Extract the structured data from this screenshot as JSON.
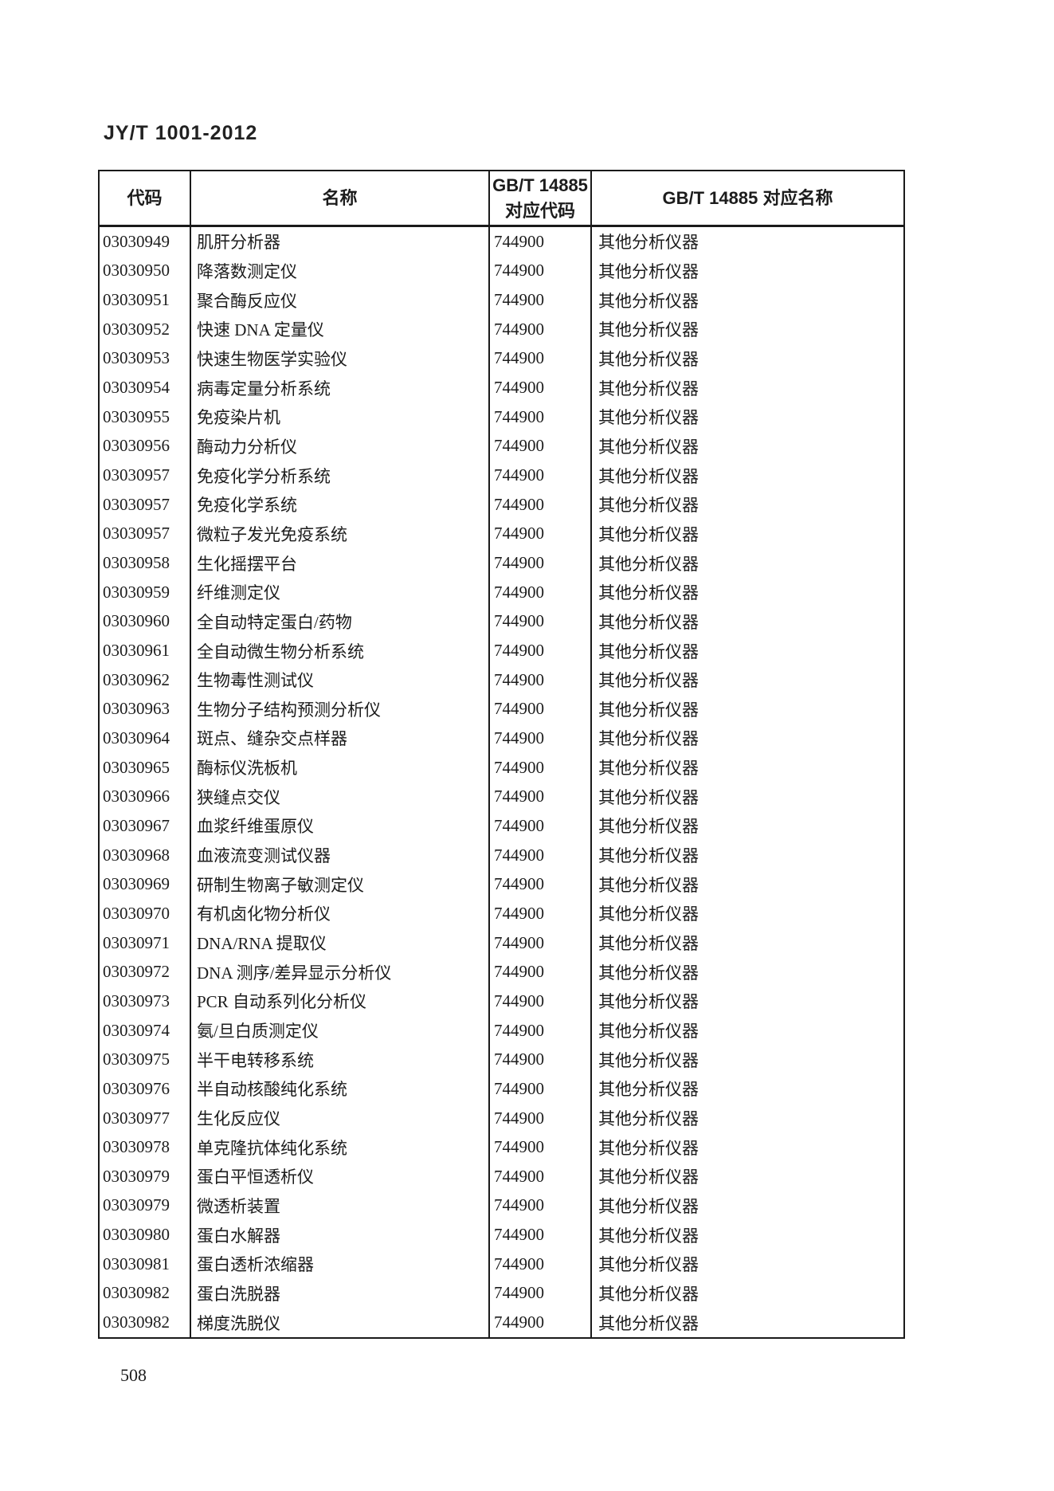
{
  "document": {
    "title": "JY/T 1001-2012",
    "page_number": "508"
  },
  "table": {
    "headers": {
      "code": "代码",
      "name": "名称",
      "gbt_code_line1": "GB/T 14885",
      "gbt_code_line2": "对应代码",
      "gbt_name": "GB/T 14885 对应名称"
    },
    "rows": [
      {
        "code": "03030949",
        "name": "肌肝分析器",
        "gbt_code": "744900",
        "gbt_name": "其他分析仪器"
      },
      {
        "code": "03030950",
        "name": "降落数测定仪",
        "gbt_code": "744900",
        "gbt_name": "其他分析仪器"
      },
      {
        "code": "03030951",
        "name": "聚合酶反应仪",
        "gbt_code": "744900",
        "gbt_name": "其他分析仪器"
      },
      {
        "code": "03030952",
        "name": "快速 DNA 定量仪",
        "gbt_code": "744900",
        "gbt_name": "其他分析仪器"
      },
      {
        "code": "03030953",
        "name": "快速生物医学实验仪",
        "gbt_code": "744900",
        "gbt_name": "其他分析仪器"
      },
      {
        "code": "03030954",
        "name": "病毒定量分析系统",
        "gbt_code": "744900",
        "gbt_name": "其他分析仪器"
      },
      {
        "code": "03030955",
        "name": "免疫染片机",
        "gbt_code": "744900",
        "gbt_name": "其他分析仪器"
      },
      {
        "code": "03030956",
        "name": "酶动力分析仪",
        "gbt_code": "744900",
        "gbt_name": "其他分析仪器"
      },
      {
        "code": "03030957",
        "name": "免疫化学分析系统",
        "gbt_code": "744900",
        "gbt_name": "其他分析仪器"
      },
      {
        "code": "03030957",
        "name": "免疫化学系统",
        "gbt_code": "744900",
        "gbt_name": "其他分析仪器"
      },
      {
        "code": "03030957",
        "name": "微粒子发光免疫系统",
        "gbt_code": "744900",
        "gbt_name": "其他分析仪器"
      },
      {
        "code": "03030958",
        "name": "生化摇摆平台",
        "gbt_code": "744900",
        "gbt_name": "其他分析仪器"
      },
      {
        "code": "03030959",
        "name": "纤维测定仪",
        "gbt_code": "744900",
        "gbt_name": "其他分析仪器"
      },
      {
        "code": "03030960",
        "name": "全自动特定蛋白/药物",
        "gbt_code": "744900",
        "gbt_name": "其他分析仪器"
      },
      {
        "code": "03030961",
        "name": "全自动微生物分析系统",
        "gbt_code": "744900",
        "gbt_name": "其他分析仪器"
      },
      {
        "code": "03030962",
        "name": "生物毒性测试仪",
        "gbt_code": "744900",
        "gbt_name": "其他分析仪器"
      },
      {
        "code": "03030963",
        "name": "生物分子结构预测分析仪",
        "gbt_code": "744900",
        "gbt_name": "其他分析仪器"
      },
      {
        "code": "03030964",
        "name": "斑点、缝杂交点样器",
        "gbt_code": "744900",
        "gbt_name": "其他分析仪器"
      },
      {
        "code": "03030965",
        "name": "酶标仪洗板机",
        "gbt_code": "744900",
        "gbt_name": "其他分析仪器"
      },
      {
        "code": "03030966",
        "name": "狭缝点交仪",
        "gbt_code": "744900",
        "gbt_name": "其他分析仪器"
      },
      {
        "code": "03030967",
        "name": "血浆纤维蛋原仪",
        "gbt_code": "744900",
        "gbt_name": "其他分析仪器"
      },
      {
        "code": "03030968",
        "name": "血液流变测试仪器",
        "gbt_code": "744900",
        "gbt_name": "其他分析仪器"
      },
      {
        "code": "03030969",
        "name": "研制生物离子敏测定仪",
        "gbt_code": "744900",
        "gbt_name": "其他分析仪器"
      },
      {
        "code": "03030970",
        "name": "有机卤化物分析仪",
        "gbt_code": "744900",
        "gbt_name": "其他分析仪器"
      },
      {
        "code": "03030971",
        "name": "DNA/RNA 提取仪",
        "gbt_code": "744900",
        "gbt_name": "其他分析仪器"
      },
      {
        "code": "03030972",
        "name": "DNA 测序/差异显示分析仪",
        "gbt_code": "744900",
        "gbt_name": "其他分析仪器"
      },
      {
        "code": "03030973",
        "name": "PCR 自动系列化分析仪",
        "gbt_code": "744900",
        "gbt_name": "其他分析仪器"
      },
      {
        "code": "03030974",
        "name": "氨/旦白质测定仪",
        "gbt_code": "744900",
        "gbt_name": "其他分析仪器"
      },
      {
        "code": "03030975",
        "name": "半干电转移系统",
        "gbt_code": "744900",
        "gbt_name": "其他分析仪器"
      },
      {
        "code": "03030976",
        "name": "半自动核酸纯化系统",
        "gbt_code": "744900",
        "gbt_name": "其他分析仪器"
      },
      {
        "code": "03030977",
        "name": "生化反应仪",
        "gbt_code": "744900",
        "gbt_name": "其他分析仪器"
      },
      {
        "code": "03030978",
        "name": "单克隆抗体纯化系统",
        "gbt_code": "744900",
        "gbt_name": "其他分析仪器"
      },
      {
        "code": "03030979",
        "name": "蛋白平恒透析仪",
        "gbt_code": "744900",
        "gbt_name": "其他分析仪器"
      },
      {
        "code": "03030979",
        "name": "微透析装置",
        "gbt_code": "744900",
        "gbt_name": "其他分析仪器"
      },
      {
        "code": "03030980",
        "name": "蛋白水解器",
        "gbt_code": "744900",
        "gbt_name": "其他分析仪器"
      },
      {
        "code": "03030981",
        "name": "蛋白透析浓缩器",
        "gbt_code": "744900",
        "gbt_name": "其他分析仪器"
      },
      {
        "code": "03030982",
        "name": "蛋白洗脱器",
        "gbt_code": "744900",
        "gbt_name": "其他分析仪器"
      },
      {
        "code": "03030982",
        "name": "梯度洗脱仪",
        "gbt_code": "744900",
        "gbt_name": "其他分析仪器"
      }
    ]
  }
}
